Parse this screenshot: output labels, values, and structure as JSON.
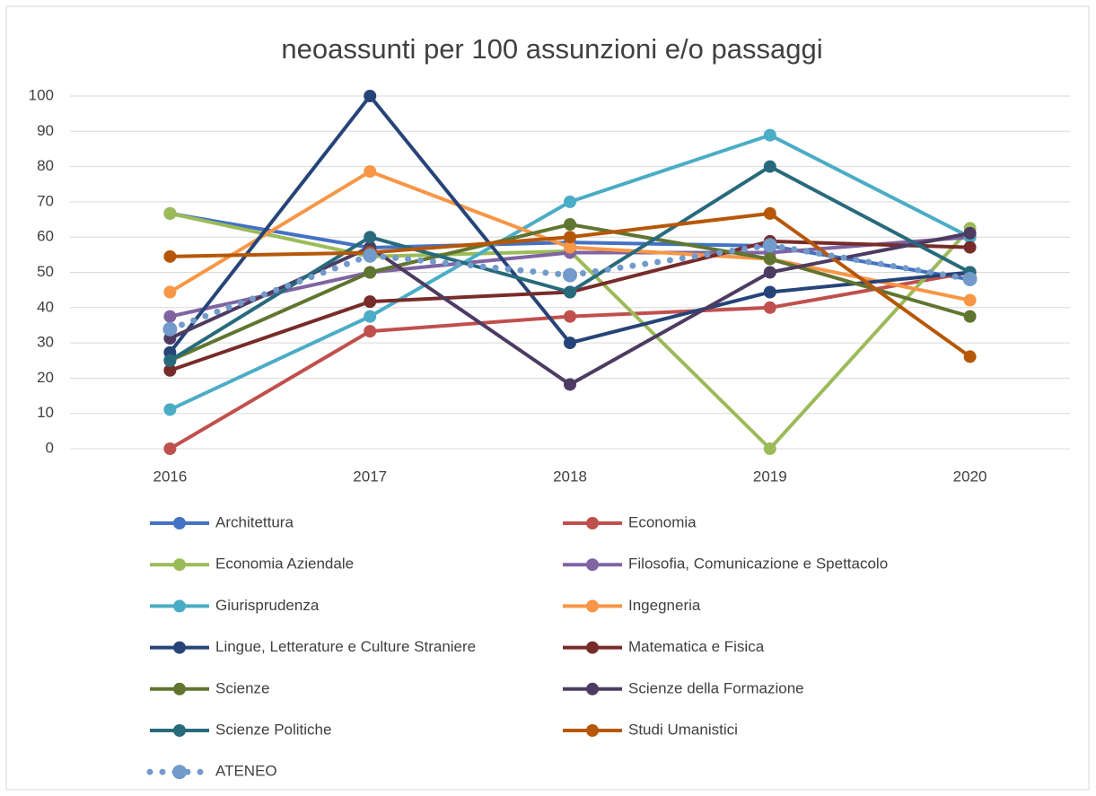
{
  "chart_data": {
    "type": "line",
    "title": "neoassunti per 100 assunzioni e/o passaggi",
    "categories": [
      "2016",
      "2017",
      "2018",
      "2019",
      "2020"
    ],
    "ylim": [
      0,
      100
    ],
    "yticks": [
      0,
      10,
      20,
      30,
      40,
      50,
      60,
      70,
      80,
      90,
      100
    ],
    "grid": true,
    "legend": "bottom",
    "series": [
      {
        "name": "Architettura",
        "color": "#4472c4",
        "values": [
          66.7,
          57,
          58.5,
          57.5,
          48
        ]
      },
      {
        "name": "Economia",
        "color": "#c0504d",
        "values": [
          0,
          33.3,
          37.5,
          40,
          50
        ]
      },
      {
        "name": "Economia Aziendale",
        "color": "#9bbb59",
        "values": [
          66.7,
          54.5,
          56,
          0,
          62.5
        ]
      },
      {
        "name": "Filosofia, Comunicazione e Spettacolo",
        "color": "#8064a2",
        "values": [
          37.5,
          50,
          55.6,
          55.6,
          60
        ]
      },
      {
        "name": "Giurisprudenza",
        "color": "#4bacc6",
        "values": [
          11.1,
          37.5,
          70,
          88.9,
          60
        ]
      },
      {
        "name": "Ingegneria",
        "color": "#f79646",
        "values": [
          44.4,
          78.6,
          57.1,
          53.8,
          42.1
        ]
      },
      {
        "name": "Lingue, Letterature e Culture Straniere",
        "color": "#264478",
        "values": [
          27.3,
          100,
          30,
          44.4,
          50
        ]
      },
      {
        "name": "Matematica e Fisica",
        "color": "#772c2a",
        "values": [
          22.2,
          41.7,
          44.4,
          58.8,
          57.1
        ]
      },
      {
        "name": "Scienze",
        "color": "#5f7530",
        "values": [
          25,
          50,
          63.6,
          53.8,
          37.5
        ]
      },
      {
        "name": "Scienze della Formazione",
        "color": "#4d3b62",
        "values": [
          31.3,
          57.1,
          18.2,
          50,
          61.1
        ]
      },
      {
        "name": "Scienze Politiche",
        "color": "#276a7c",
        "values": [
          25,
          60,
          44.4,
          80,
          50
        ]
      },
      {
        "name": "Studi Umanistici",
        "color": "#b65708",
        "values": [
          54.5,
          55.6,
          60,
          66.7,
          26.1
        ]
      },
      {
        "name": "ATENEO",
        "color": "#729aca",
        "dotted": true,
        "values": [
          33.9,
          54.8,
          49.2,
          57.7,
          48.1
        ]
      }
    ]
  }
}
